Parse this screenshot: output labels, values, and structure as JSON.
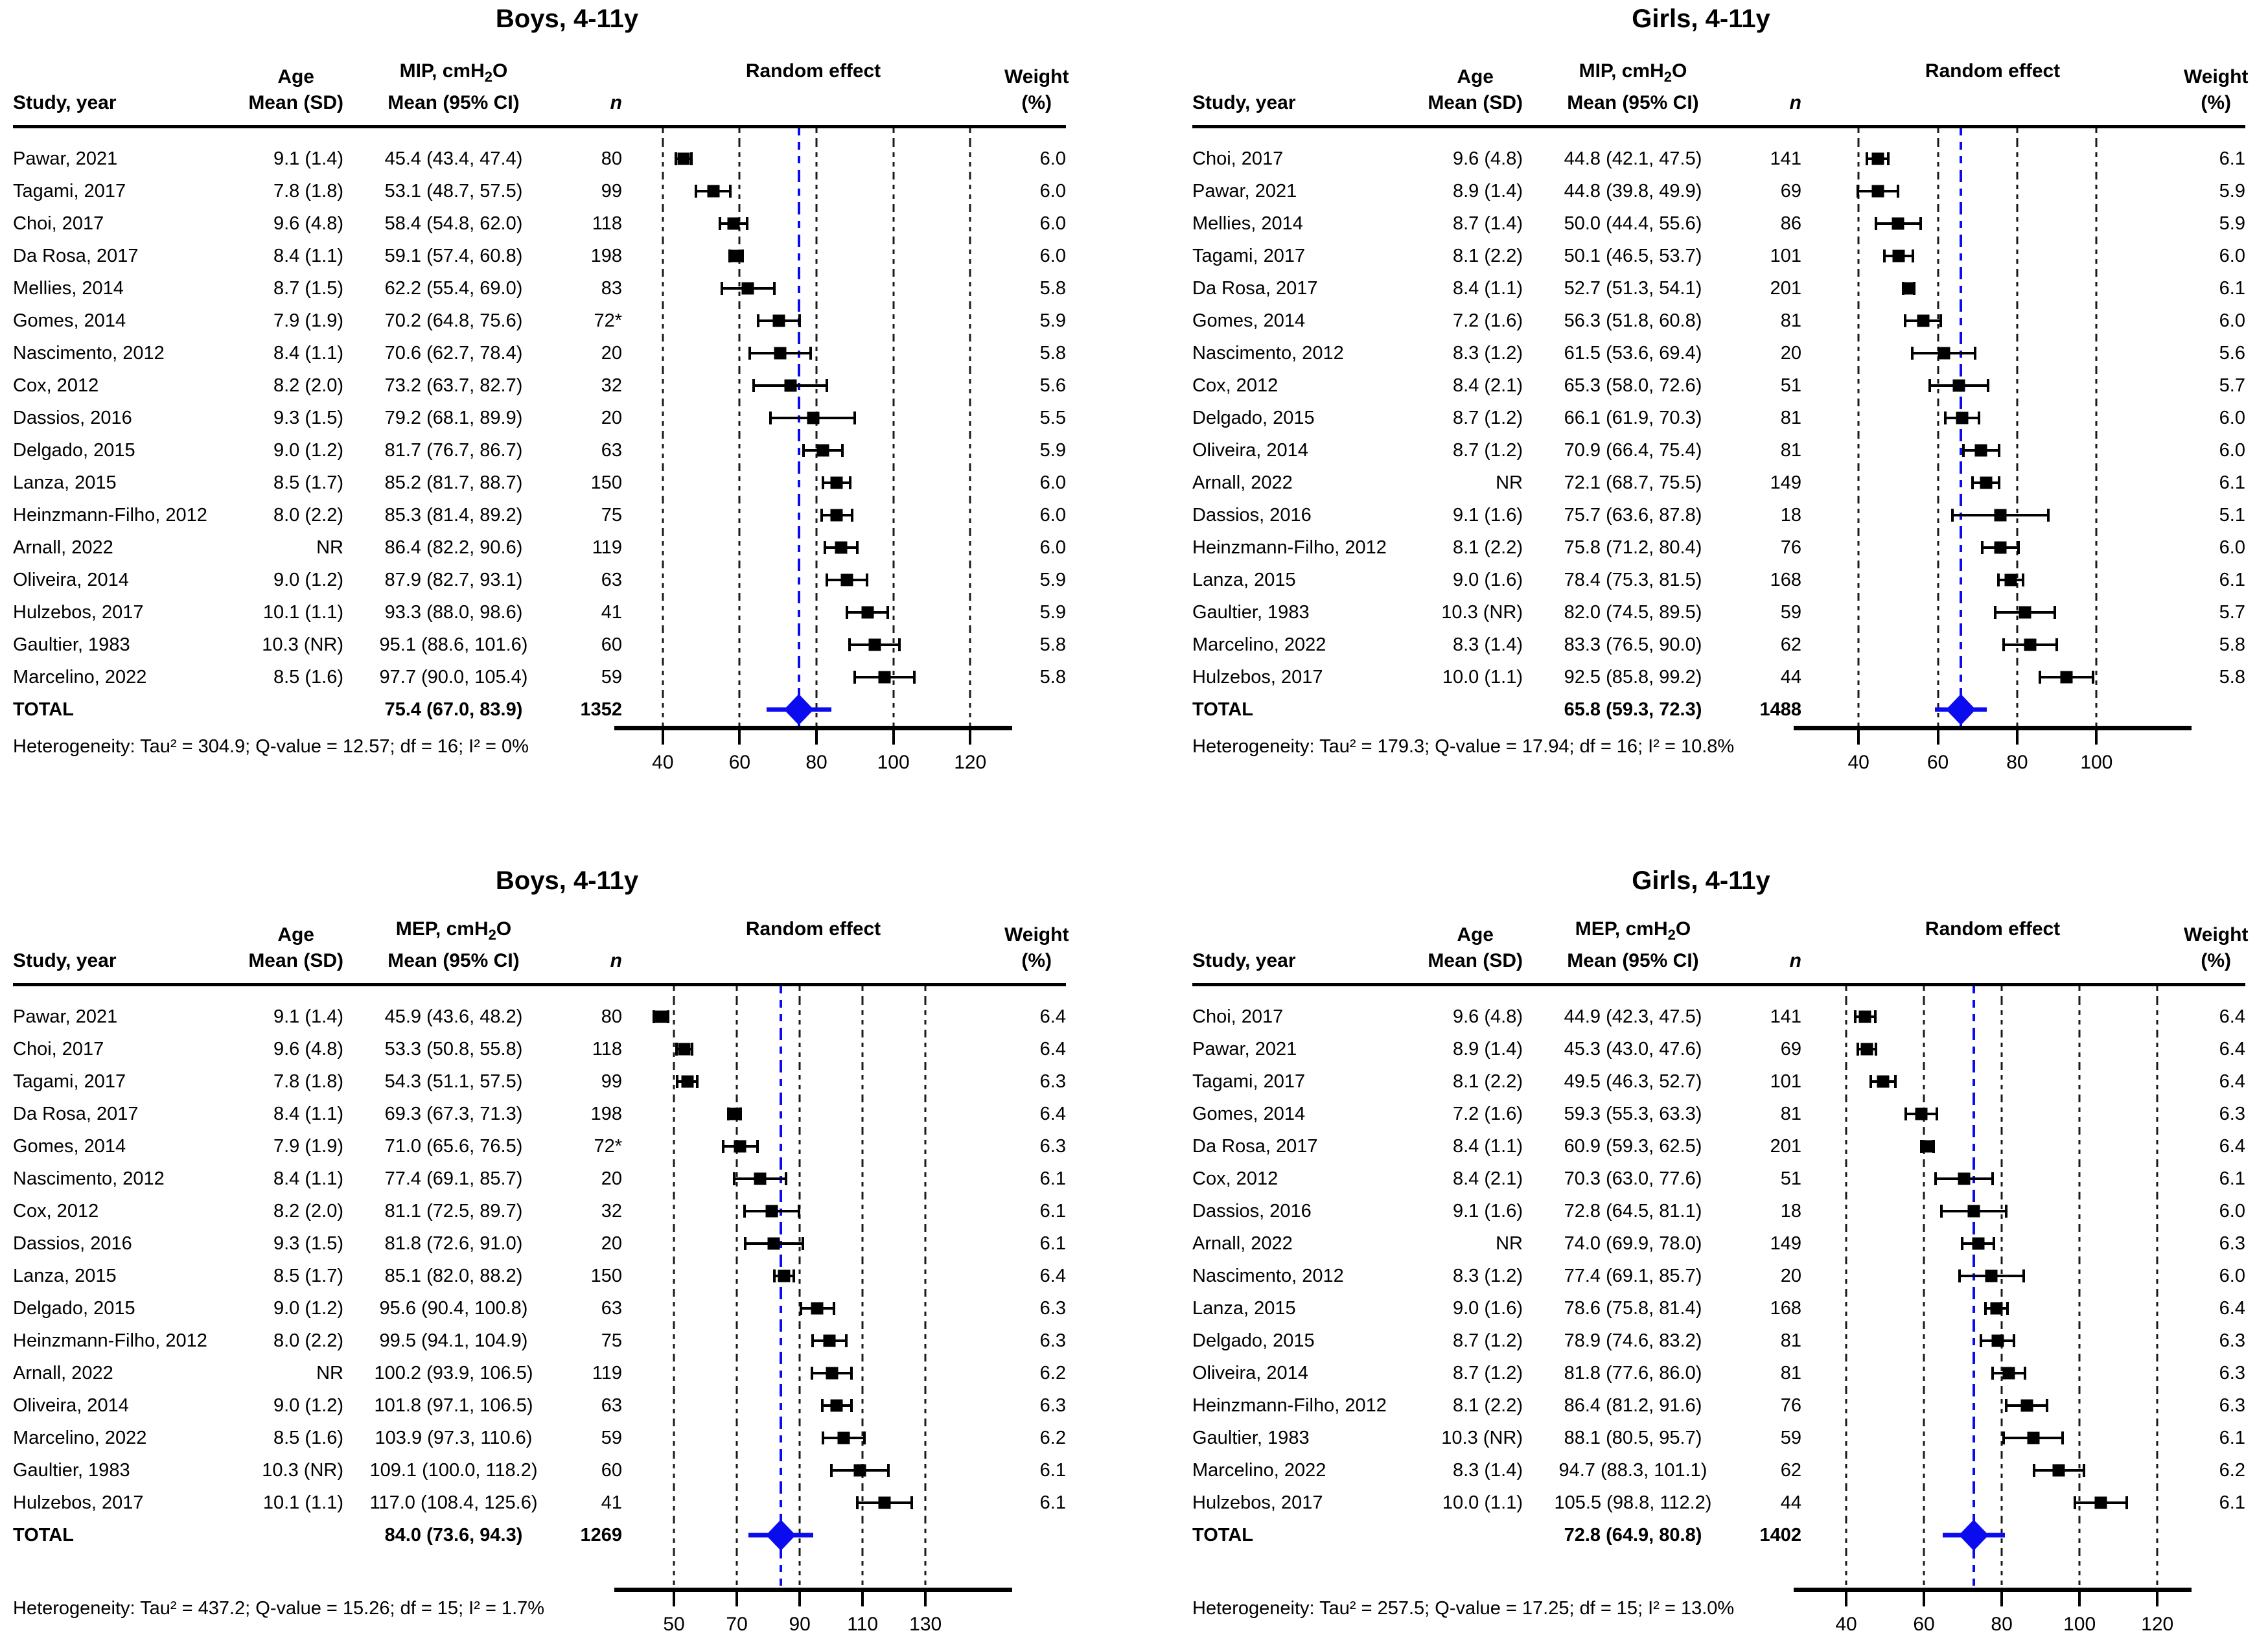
{
  "columns": {
    "study": "Study, year",
    "age_top": "Age",
    "age_bottom": "Mean (SD)",
    "mean_bottom": "Mean (95% CI)",
    "n": "n",
    "plot": "Random effect",
    "weight_top": "Weight",
    "weight_bottom": "(%)"
  },
  "colors": {
    "accent_blue": "#0b0bf0",
    "text": "#000000",
    "gridline": "#1a1a1a"
  },
  "chart_data": [
    {
      "type": "forest",
      "title": "Boys, 4-11y",
      "measure": {
        "m1": "MIP, cmH",
        "sub": "2",
        "m3": "O"
      },
      "studies": [
        {
          "study": "Pawar, 2021",
          "age": "9.1 (1.4)",
          "mean_ci": "45.4 (43.4, 47.4)",
          "n": "80",
          "weight": "6.0",
          "mean": 45.4,
          "lo": 43.4,
          "hi": 47.4
        },
        {
          "study": "Tagami, 2017",
          "age": "7.8 (1.8)",
          "mean_ci": "53.1 (48.7, 57.5)",
          "n": "99",
          "weight": "6.0",
          "mean": 53.1,
          "lo": 48.7,
          "hi": 57.5
        },
        {
          "study": "Choi, 2017",
          "age": "9.6 (4.8)",
          "mean_ci": "58.4 (54.8, 62.0)",
          "n": "118",
          "weight": "6.0",
          "mean": 58.4,
          "lo": 54.8,
          "hi": 62.0
        },
        {
          "study": "Da Rosa, 2017",
          "age": "8.4 (1.1)",
          "mean_ci": "59.1 (57.4, 60.8)",
          "n": "198",
          "weight": "6.0",
          "mean": 59.1,
          "lo": 57.4,
          "hi": 60.8
        },
        {
          "study": "Mellies, 2014",
          "age": "8.7 (1.5)",
          "mean_ci": "62.2 (55.4, 69.0)",
          "n": "83",
          "weight": "5.8",
          "mean": 62.2,
          "lo": 55.4,
          "hi": 69.0
        },
        {
          "study": "Gomes, 2014",
          "age": "7.9 (1.9)",
          "mean_ci": "70.2 (64.8, 75.6)",
          "n": "72*",
          "weight": "5.9",
          "mean": 70.2,
          "lo": 64.8,
          "hi": 75.6
        },
        {
          "study": "Nascimento, 2012",
          "age": "8.4 (1.1)",
          "mean_ci": "70.6 (62.7, 78.4)",
          "n": "20",
          "weight": "5.8",
          "mean": 70.6,
          "lo": 62.7,
          "hi": 78.4
        },
        {
          "study": "Cox, 2012",
          "age": "8.2 (2.0)",
          "mean_ci": "73.2 (63.7, 82.7)",
          "n": "32",
          "weight": "5.6",
          "mean": 73.2,
          "lo": 63.7,
          "hi": 82.7
        },
        {
          "study": "Dassios, 2016",
          "age": "9.3 (1.5)",
          "mean_ci": "79.2 (68.1, 89.9)",
          "n": "20",
          "weight": "5.5",
          "mean": 79.2,
          "lo": 68.1,
          "hi": 89.9
        },
        {
          "study": "Delgado, 2015",
          "age": "9.0 (1.2)",
          "mean_ci": "81.7 (76.7, 86.7)",
          "n": "63",
          "weight": "5.9",
          "mean": 81.7,
          "lo": 76.7,
          "hi": 86.7
        },
        {
          "study": "Lanza, 2015",
          "age": "8.5 (1.7)",
          "mean_ci": "85.2 (81.7, 88.7)",
          "n": "150",
          "weight": "6.0",
          "mean": 85.2,
          "lo": 81.7,
          "hi": 88.7
        },
        {
          "study": "Heinzmann-Filho, 2012",
          "age": "8.0 (2.2)",
          "mean_ci": "85.3 (81.4, 89.2)",
          "n": "75",
          "weight": "6.0",
          "mean": 85.3,
          "lo": 81.4,
          "hi": 89.2
        },
        {
          "study": "Arnall, 2022",
          "age": "NR",
          "mean_ci": "86.4 (82.2, 90.6)",
          "n": "119",
          "weight": "6.0",
          "mean": 86.4,
          "lo": 82.2,
          "hi": 90.6
        },
        {
          "study": "Oliveira, 2014",
          "age": "9.0 (1.2)",
          "mean_ci": "87.9 (82.7, 93.1)",
          "n": "63",
          "weight": "5.9",
          "mean": 87.9,
          "lo": 82.7,
          "hi": 93.1
        },
        {
          "study": "Hulzebos, 2017",
          "age": "10.1 (1.1)",
          "mean_ci": "93.3 (88.0, 98.6)",
          "n": "41",
          "weight": "5.9",
          "mean": 93.3,
          "lo": 88.0,
          "hi": 98.6
        },
        {
          "study": "Gaultier, 1983",
          "age": "10.3 (NR)",
          "mean_ci": "95.1 (88.6, 101.6)",
          "n": "60",
          "weight": "5.8",
          "mean": 95.1,
          "lo": 88.6,
          "hi": 101.6
        },
        {
          "study": "Marcelino, 2022",
          "age": "8.5 (1.6)",
          "mean_ci": "97.7 (90.0, 105.4)",
          "n": "59",
          "weight": "5.8",
          "mean": 97.7,
          "lo": 90.0,
          "hi": 105.4
        }
      ],
      "total": {
        "label": "TOTAL",
        "mean_ci": "75.4 (67.0, 83.9)",
        "n": "1352",
        "mean": 75.4,
        "lo": 67.0,
        "hi": 83.9
      },
      "heterogeneity": "Heterogeneity: Tau² = 304.9; Q-value = 12.57; df  = 16; I² = 0%",
      "axis": {
        "ticks": [
          40,
          60,
          80,
          100,
          120
        ],
        "xlim": [
          29.4,
          128.9
        ]
      }
    },
    {
      "type": "forest",
      "title": "Girls, 4-11y",
      "measure": {
        "m1": "MIP, cmH",
        "sub": "2",
        "m3": "O"
      },
      "studies": [
        {
          "study": "Choi, 2017",
          "age": "9.6 (4.8)",
          "mean_ci": "44.8 (42.1, 47.5)",
          "n": "141",
          "weight": "6.1",
          "mean": 44.8,
          "lo": 42.1,
          "hi": 47.5
        },
        {
          "study": "Pawar, 2021",
          "age": "8.9 (1.4)",
          "mean_ci": "44.8 (39.8, 49.9)",
          "n": "69",
          "weight": "5.9",
          "mean": 44.8,
          "lo": 39.8,
          "hi": 49.9
        },
        {
          "study": "Mellies, 2014",
          "age": "8.7 (1.4)",
          "mean_ci": "50.0 (44.4, 55.6)",
          "n": "86",
          "weight": "5.9",
          "mean": 50.0,
          "lo": 44.4,
          "hi": 55.6
        },
        {
          "study": "Tagami, 2017",
          "age": "8.1 (2.2)",
          "mean_ci": "50.1 (46.5, 53.7)",
          "n": "101",
          "weight": "6.0",
          "mean": 50.1,
          "lo": 46.5,
          "hi": 53.7
        },
        {
          "study": "Da Rosa, 2017",
          "age": "8.4 (1.1)",
          "mean_ci": "52.7 (51.3, 54.1)",
          "n": "201",
          "weight": "6.1",
          "mean": 52.7,
          "lo": 51.3,
          "hi": 54.1
        },
        {
          "study": "Gomes, 2014",
          "age": "7.2 (1.6)",
          "mean_ci": "56.3 (51.8, 60.8)",
          "n": "81",
          "weight": "6.0",
          "mean": 56.3,
          "lo": 51.8,
          "hi": 60.8
        },
        {
          "study": "Nascimento, 2012",
          "age": "8.3 (1.2)",
          "mean_ci": "61.5 (53.6, 69.4)",
          "n": "20",
          "weight": "5.6",
          "mean": 61.5,
          "lo": 53.6,
          "hi": 69.4
        },
        {
          "study": "Cox, 2012",
          "age": "8.4 (2.1)",
          "mean_ci": "65.3 (58.0, 72.6)",
          "n": "51",
          "weight": "5.7",
          "mean": 65.3,
          "lo": 58.0,
          "hi": 72.6
        },
        {
          "study": "Delgado, 2015",
          "age": "8.7 (1.2)",
          "mean_ci": "66.1 (61.9, 70.3)",
          "n": "81",
          "weight": "6.0",
          "mean": 66.1,
          "lo": 61.9,
          "hi": 70.3
        },
        {
          "study": "Oliveira, 2014",
          "age": "8.7 (1.2)",
          "mean_ci": "70.9 (66.4, 75.4)",
          "n": "81",
          "weight": "6.0",
          "mean": 70.9,
          "lo": 66.4,
          "hi": 75.4
        },
        {
          "study": "Arnall, 2022",
          "age": "NR",
          "mean_ci": "72.1 (68.7, 75.5)",
          "n": "149",
          "weight": "6.1",
          "mean": 72.1,
          "lo": 68.7,
          "hi": 75.5
        },
        {
          "study": "Dassios, 2016",
          "age": "9.1 (1.6)",
          "mean_ci": "75.7 (63.6, 87.8)",
          "n": "18",
          "weight": "5.1",
          "mean": 75.7,
          "lo": 63.6,
          "hi": 87.8
        },
        {
          "study": "Heinzmann-Filho, 2012",
          "age": "8.1 (2.2)",
          "mean_ci": "75.8 (71.2, 80.4)",
          "n": "76",
          "weight": "6.0",
          "mean": 75.8,
          "lo": 71.2,
          "hi": 80.4
        },
        {
          "study": "Lanza, 2015",
          "age": "9.0 (1.6)",
          "mean_ci": "78.4 (75.3, 81.5)",
          "n": "168",
          "weight": "6.1",
          "mean": 78.4,
          "lo": 75.3,
          "hi": 81.5
        },
        {
          "study": "Gaultier, 1983",
          "age": "10.3 (NR)",
          "mean_ci": "82.0 (74.5, 89.5)",
          "n": "59",
          "weight": "5.7",
          "mean": 82.0,
          "lo": 74.5,
          "hi": 89.5
        },
        {
          "study": "Marcelino, 2022",
          "age": "8.3 (1.4)",
          "mean_ci": "83.3 (76.5, 90.0)",
          "n": "62",
          "weight": "5.8",
          "mean": 83.3,
          "lo": 76.5,
          "hi": 90.0
        },
        {
          "study": "Hulzebos, 2017",
          "age": "10.0 (1.1)",
          "mean_ci": "92.5 (85.8, 99.2)",
          "n": "44",
          "weight": "5.8",
          "mean": 92.5,
          "lo": 85.8,
          "hi": 99.2
        }
      ],
      "total": {
        "label": "TOTAL",
        "mean_ci": "65.8 (59.3, 72.3)",
        "n": "1488",
        "mean": 65.8,
        "lo": 59.3,
        "hi": 72.3
      },
      "heterogeneity": "Heterogeneity: Tau² = 179.3; Q-value = 17.94; df  = 16; I² = 10.8%",
      "axis": {
        "ticks": [
          40,
          60,
          80,
          100
        ],
        "xlim": [
          25.6,
          122.0
        ]
      }
    },
    {
      "type": "forest",
      "title": "Boys, 4-11y",
      "measure": {
        "m1": "MEP, cmH",
        "sub": "2",
        "m3": "O"
      },
      "studies": [
        {
          "study": "Pawar, 2021",
          "age": "9.1 (1.4)",
          "mean_ci": "45.9 (43.6, 48.2)",
          "n": "80",
          "weight": "6.4",
          "mean": 45.9,
          "lo": 43.6,
          "hi": 48.2
        },
        {
          "study": "Choi, 2017",
          "age": "9.6 (4.8)",
          "mean_ci": "53.3 (50.8, 55.8)",
          "n": "118",
          "weight": "6.4",
          "mean": 53.3,
          "lo": 50.8,
          "hi": 55.8
        },
        {
          "study": "Tagami, 2017",
          "age": "7.8 (1.8)",
          "mean_ci": "54.3 (51.1, 57.5)",
          "n": "99",
          "weight": "6.3",
          "mean": 54.3,
          "lo": 51.1,
          "hi": 57.5
        },
        {
          "study": "Da Rosa, 2017",
          "age": "8.4 (1.1)",
          "mean_ci": "69.3 (67.3, 71.3)",
          "n": "198",
          "weight": "6.4",
          "mean": 69.3,
          "lo": 67.3,
          "hi": 71.3
        },
        {
          "study": "Gomes, 2014",
          "age": "7.9 (1.9)",
          "mean_ci": "71.0 (65.6, 76.5)",
          "n": "72*",
          "weight": "6.3",
          "mean": 71.0,
          "lo": 65.6,
          "hi": 76.5
        },
        {
          "study": "Nascimento, 2012",
          "age": "8.4 (1.1)",
          "mean_ci": "77.4 (69.1, 85.7)",
          "n": "20",
          "weight": "6.1",
          "mean": 77.4,
          "lo": 69.1,
          "hi": 85.7
        },
        {
          "study": "Cox, 2012",
          "age": "8.2 (2.0)",
          "mean_ci": "81.1 (72.5, 89.7)",
          "n": "32",
          "weight": "6.1",
          "mean": 81.1,
          "lo": 72.5,
          "hi": 89.7
        },
        {
          "study": "Dassios, 2016",
          "age": "9.3 (1.5)",
          "mean_ci": "81.8 (72.6, 91.0)",
          "n": "20",
          "weight": "6.1",
          "mean": 81.8,
          "lo": 72.6,
          "hi": 91.0
        },
        {
          "study": "Lanza, 2015",
          "age": "8.5 (1.7)",
          "mean_ci": "85.1 (82.0, 88.2)",
          "n": "150",
          "weight": "6.4",
          "mean": 85.1,
          "lo": 82.0,
          "hi": 88.2
        },
        {
          "study": "Delgado, 2015",
          "age": "9.0 (1.2)",
          "mean_ci": "95.6 (90.4, 100.8)",
          "n": "63",
          "weight": "6.3",
          "mean": 95.6,
          "lo": 90.4,
          "hi": 100.8
        },
        {
          "study": "Heinzmann-Filho, 2012",
          "age": "8.0 (2.2)",
          "mean_ci": "99.5 (94.1, 104.9)",
          "n": "75",
          "weight": "6.3",
          "mean": 99.5,
          "lo": 94.1,
          "hi": 104.9
        },
        {
          "study": "Arnall, 2022",
          "age": "NR",
          "mean_ci": "100.2 (93.9, 106.5)",
          "n": "119",
          "weight": "6.2",
          "mean": 100.2,
          "lo": 93.9,
          "hi": 106.5
        },
        {
          "study": "Oliveira, 2014",
          "age": "9.0 (1.2)",
          "mean_ci": "101.8 (97.1, 106.5)",
          "n": "63",
          "weight": "6.3",
          "mean": 101.8,
          "lo": 97.1,
          "hi": 106.5
        },
        {
          "study": "Marcelino, 2022",
          "age": "8.5 (1.6)",
          "mean_ci": "103.9 (97.3, 110.6)",
          "n": "59",
          "weight": "6.2",
          "mean": 103.9,
          "lo": 97.3,
          "hi": 110.6
        },
        {
          "study": "Gaultier, 1983",
          "age": "10.3 (NR)",
          "mean_ci": "109.1 (100.0, 118.2)",
          "n": "60",
          "weight": "6.1",
          "mean": 109.1,
          "lo": 100.0,
          "hi": 118.2
        },
        {
          "study": "Hulzebos, 2017",
          "age": "10.1 (1.1)",
          "mean_ci": "117.0 (108.4, 125.6)",
          "n": "41",
          "weight": "6.1",
          "mean": 117.0,
          "lo": 108.4,
          "hi": 125.6
        }
      ],
      "total": {
        "label": "TOTAL",
        "mean_ci": "84.0 (73.6, 94.3)",
        "n": "1269",
        "mean": 84.0,
        "lo": 73.6,
        "hi": 94.3
      },
      "heterogeneity": "Heterogeneity: Tau² = 437.2; Q-value = 15.26; df  = 15; I² = 1.7%",
      "axis": {
        "ticks": [
          50,
          70,
          90,
          110,
          130
        ],
        "xlim": [
          33.5,
          155.1
        ]
      }
    },
    {
      "type": "forest",
      "title": "Girls, 4-11y",
      "measure": {
        "m1": "MEP, cmH",
        "sub": "2",
        "m3": "O"
      },
      "studies": [
        {
          "study": "Choi, 2017",
          "age": "9.6 (4.8)",
          "mean_ci": "44.9 (42.3, 47.5)",
          "n": "141",
          "weight": "6.4",
          "mean": 44.9,
          "lo": 42.3,
          "hi": 47.5
        },
        {
          "study": "Pawar, 2021",
          "age": "8.9 (1.4)",
          "mean_ci": "45.3 (43.0, 47.6)",
          "n": "69",
          "weight": "6.4",
          "mean": 45.3,
          "lo": 43.0,
          "hi": 47.6
        },
        {
          "study": "Tagami, 2017",
          "age": "8.1 (2.2)",
          "mean_ci": "49.5 (46.3, 52.7)",
          "n": "101",
          "weight": "6.4",
          "mean": 49.5,
          "lo": 46.3,
          "hi": 52.7
        },
        {
          "study": "Gomes, 2014",
          "age": "7.2 (1.6)",
          "mean_ci": "59.3 (55.3, 63.3)",
          "n": "81",
          "weight": "6.3",
          "mean": 59.3,
          "lo": 55.3,
          "hi": 63.3
        },
        {
          "study": "Da Rosa, 2017",
          "age": "8.4 (1.1)",
          "mean_ci": "60.9 (59.3, 62.5)",
          "n": "201",
          "weight": "6.4",
          "mean": 60.9,
          "lo": 59.3,
          "hi": 62.5
        },
        {
          "study": "Cox, 2012",
          "age": "8.4 (2.1)",
          "mean_ci": "70.3 (63.0, 77.6)",
          "n": "51",
          "weight": "6.1",
          "mean": 70.3,
          "lo": 63.0,
          "hi": 77.6
        },
        {
          "study": "Dassios, 2016",
          "age": "9.1 (1.6)",
          "mean_ci": "72.8 (64.5, 81.1)",
          "n": "18",
          "weight": "6.0",
          "mean": 72.8,
          "lo": 64.5,
          "hi": 81.1
        },
        {
          "study": "Arnall, 2022",
          "age": "NR",
          "mean_ci": "74.0 (69.9, 78.0)",
          "n": "149",
          "weight": "6.3",
          "mean": 74.0,
          "lo": 69.9,
          "hi": 78.0
        },
        {
          "study": "Nascimento, 2012",
          "age": "8.3 (1.2)",
          "mean_ci": "77.4 (69.1, 85.7)",
          "n": "20",
          "weight": "6.0",
          "mean": 77.4,
          "lo": 69.1,
          "hi": 85.7
        },
        {
          "study": "Lanza, 2015",
          "age": "9.0 (1.6)",
          "mean_ci": "78.6 (75.8, 81.4)",
          "n": "168",
          "weight": "6.4",
          "mean": 78.6,
          "lo": 75.8,
          "hi": 81.4
        },
        {
          "study": "Delgado, 2015",
          "age": "8.7 (1.2)",
          "mean_ci": "78.9 (74.6, 83.2)",
          "n": "81",
          "weight": "6.3",
          "mean": 78.9,
          "lo": 74.6,
          "hi": 83.2
        },
        {
          "study": "Oliveira, 2014",
          "age": "8.7 (1.2)",
          "mean_ci": "81.8 (77.6, 86.0)",
          "n": "81",
          "weight": "6.3",
          "mean": 81.8,
          "lo": 77.6,
          "hi": 86.0
        },
        {
          "study": "Heinzmann-Filho, 2012",
          "age": "8.1 (2.2)",
          "mean_ci": "86.4 (81.2, 91.6)",
          "n": "76",
          "weight": "6.3",
          "mean": 86.4,
          "lo": 81.2,
          "hi": 91.6
        },
        {
          "study": "Gaultier, 1983",
          "age": "10.3 (NR)",
          "mean_ci": "88.1 (80.5, 95.7)",
          "n": "59",
          "weight": "6.1",
          "mean": 88.1,
          "lo": 80.5,
          "hi": 95.7
        },
        {
          "study": "Marcelino, 2022",
          "age": "8.3 (1.4)",
          "mean_ci": "94.7 (88.3, 101.1)",
          "n": "62",
          "weight": "6.2",
          "mean": 94.7,
          "lo": 88.3,
          "hi": 101.1
        },
        {
          "study": "Hulzebos, 2017",
          "age": "10.0 (1.1)",
          "mean_ci": "105.5 (98.8, 112.2)",
          "n": "44",
          "weight": "6.1",
          "mean": 105.5,
          "lo": 98.8,
          "hi": 112.2
        }
      ],
      "total": {
        "label": "TOTAL",
        "mean_ci": "72.8 (64.9, 80.8)",
        "n": "1402",
        "mean": 72.8,
        "lo": 64.9,
        "hi": 80.8
      },
      "heterogeneity": "Heterogeneity: Tau² = 257.5; Q-value = 17.25; df  = 15; I² = 13.0%",
      "axis": {
        "ticks": [
          40,
          60,
          80,
          100,
          120
        ],
        "xlim": [
          28.5,
          126.8
        ]
      }
    }
  ]
}
